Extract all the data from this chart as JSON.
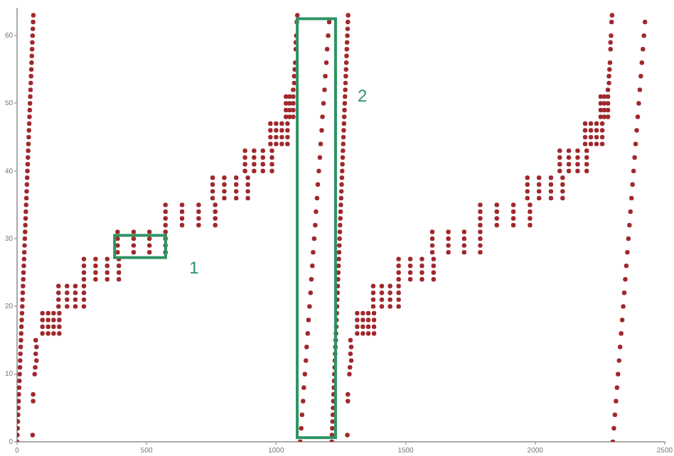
{
  "chart_data": {
    "type": "scatter",
    "xlim": [
      0,
      2500
    ],
    "xticks": [
      0,
      500,
      1000,
      1500,
      2000,
      2500
    ],
    "ylim": [
      0,
      64
    ],
    "yticks": [
      0,
      10,
      20,
      30,
      40,
      50,
      60
    ],
    "grid": false,
    "legend": false,
    "marker": "circle",
    "annotations": [
      "1",
      "2"
    ],
    "series": [
      {
        "color": "#a0282d",
        "x": [
          0,
          1,
          2,
          3,
          4,
          5,
          6,
          7,
          8,
          9,
          10,
          11,
          12,
          13,
          14,
          15,
          16,
          17,
          18,
          19,
          20,
          21,
          22,
          23,
          24,
          25,
          26,
          27,
          28,
          29,
          30,
          31,
          32,
          33,
          34,
          35,
          36,
          37,
          38,
          39,
          40,
          41,
          42,
          43,
          44,
          45,
          46,
          47,
          48,
          49,
          50,
          51,
          52,
          53,
          54,
          55,
          56,
          57,
          58,
          59,
          60,
          61,
          62,
          63
        ],
        "values": [
          0,
          1,
          2,
          3,
          4,
          5,
          6,
          7,
          8,
          9,
          10,
          11,
          12,
          13,
          14,
          15,
          16,
          17,
          18,
          19,
          20,
          21,
          22,
          23,
          24,
          25,
          26,
          27,
          28,
          29,
          30,
          31,
          32,
          33,
          34,
          35,
          36,
          37,
          38,
          39,
          40,
          41,
          42,
          43,
          44,
          45,
          46,
          47,
          48,
          49,
          50,
          51,
          52,
          53,
          54,
          55,
          56,
          57,
          58,
          59,
          60,
          61,
          62,
          63
        ]
      },
      {
        "color": "#a0282d",
        "x": [
          60,
          62,
          62,
          68,
          70,
          75,
          72,
          75,
          72,
          98,
          120,
          141,
          163,
          98,
          120,
          141,
          163,
          98,
          120,
          141,
          163,
          98,
          120,
          141,
          163,
          160,
          193,
          225,
          258,
          160,
          193,
          225,
          258,
          160,
          193,
          225,
          258,
          160,
          193,
          225,
          258,
          258,
          303,
          348,
          393,
          258,
          303,
          348,
          393,
          258,
          303,
          348,
          393,
          258,
          303,
          348,
          393,
          388,
          450,
          511,
          573,
          388,
          450,
          511,
          573,
          388,
          450,
          511,
          573,
          388,
          450,
          511,
          573,
          573,
          637,
          701,
          765,
          573,
          637,
          701,
          765,
          573,
          637,
          701,
          765,
          573,
          637,
          701,
          765,
          755,
          800,
          846,
          891,
          755,
          800,
          846,
          891,
          755,
          800,
          846,
          891,
          755,
          800,
          846,
          891,
          880,
          915,
          949,
          984,
          880,
          915,
          949,
          984,
          880,
          915,
          949,
          984,
          880,
          915,
          949,
          984,
          978,
          1000,
          1022,
          1044,
          978,
          1000,
          1022,
          1044,
          978,
          1000,
          1022,
          1044,
          978,
          1000,
          1022,
          1044,
          1038,
          1052,
          1066,
          1038,
          1052,
          1066,
          1038,
          1052,
          1066,
          1038,
          1052,
          1066,
          1066,
          1070,
          1070,
          1072,
          1074,
          1076,
          1076,
          1078,
          1080,
          1082
        ],
        "values": [
          1,
          6,
          7,
          10,
          11,
          12,
          13,
          14,
          15,
          16,
          16,
          16,
          16,
          17,
          17,
          17,
          17,
          18,
          18,
          18,
          18,
          19,
          19,
          19,
          19,
          20,
          20,
          20,
          20,
          21,
          21,
          21,
          21,
          22,
          22,
          22,
          22,
          23,
          23,
          23,
          23,
          24,
          24,
          24,
          24,
          25,
          25,
          25,
          25,
          26,
          26,
          26,
          26,
          27,
          27,
          27,
          27,
          28,
          28,
          28,
          28,
          29,
          29,
          29,
          29,
          30,
          30,
          30,
          30,
          31,
          31,
          31,
          31,
          32,
          32,
          32,
          32,
          33,
          33,
          33,
          33,
          34,
          34,
          34,
          34,
          35,
          35,
          35,
          35,
          36,
          36,
          36,
          36,
          37,
          37,
          37,
          37,
          38,
          38,
          38,
          38,
          39,
          39,
          39,
          39,
          40,
          40,
          40,
          40,
          41,
          41,
          41,
          41,
          42,
          42,
          42,
          42,
          43,
          43,
          43,
          43,
          44,
          44,
          44,
          44,
          45,
          45,
          45,
          45,
          46,
          46,
          46,
          46,
          47,
          47,
          47,
          47,
          48,
          48,
          48,
          49,
          49,
          49,
          50,
          50,
          50,
          51,
          51,
          51,
          52,
          53,
          54,
          55,
          56,
          58,
          59,
          60,
          62,
          63
        ]
      },
      {
        "color": "#a0282d",
        "x": [
          1093,
          1097,
          1100,
          1104,
          1107,
          1111,
          1115,
          1118,
          1122,
          1125,
          1129,
          1133,
          1136,
          1140,
          1143,
          1147,
          1151,
          1154,
          1158,
          1161,
          1165,
          1169,
          1172,
          1176,
          1179,
          1183,
          1187,
          1190,
          1194,
          1197,
          1201,
          1205
        ],
        "values": [
          0,
          2,
          4,
          6,
          8,
          10,
          12,
          14,
          16,
          18,
          20,
          22,
          24,
          26,
          28,
          30,
          32,
          34,
          36,
          38,
          40,
          42,
          44,
          46,
          48,
          50,
          52,
          54,
          56,
          58,
          60,
          62
        ]
      },
      {
        "color": "#a0282d",
        "x": [
          1215,
          1216,
          1217,
          1218,
          1219,
          1220,
          1221,
          1222,
          1223,
          1224,
          1225,
          1226,
          1227,
          1228,
          1229,
          1230,
          1231,
          1232,
          1233,
          1234,
          1235,
          1236,
          1237,
          1238,
          1239,
          1240,
          1241,
          1242,
          1243,
          1244,
          1245,
          1246,
          1247,
          1248,
          1249,
          1250,
          1251,
          1252,
          1253,
          1254,
          1255,
          1256,
          1257,
          1258,
          1259,
          1260,
          1261,
          1262,
          1263,
          1264,
          1265,
          1266,
          1267,
          1268,
          1269,
          1270,
          1271,
          1272,
          1273,
          1274,
          1275,
          1276,
          1277,
          1278
        ],
        "values": [
          0,
          1,
          2,
          3,
          4,
          5,
          6,
          7,
          8,
          9,
          10,
          11,
          12,
          13,
          14,
          15,
          16,
          17,
          18,
          19,
          20,
          21,
          22,
          23,
          24,
          25,
          26,
          27,
          28,
          29,
          30,
          31,
          32,
          33,
          34,
          35,
          36,
          37,
          38,
          39,
          40,
          41,
          42,
          43,
          44,
          45,
          46,
          47,
          48,
          49,
          50,
          51,
          52,
          53,
          54,
          55,
          56,
          57,
          58,
          59,
          60,
          61,
          62,
          63
        ]
      },
      {
        "color": "#a0282d",
        "x": [
          1275,
          1277,
          1277,
          1283,
          1285,
          1290,
          1287,
          1290,
          1287,
          1313,
          1335,
          1356,
          1378,
          1313,
          1335,
          1356,
          1378,
          1313,
          1335,
          1356,
          1378,
          1313,
          1335,
          1356,
          1378,
          1375,
          1408,
          1440,
          1473,
          1375,
          1408,
          1440,
          1473,
          1375,
          1408,
          1440,
          1473,
          1375,
          1408,
          1440,
          1473,
          1473,
          1518,
          1563,
          1608,
          1473,
          1518,
          1563,
          1608,
          1473,
          1518,
          1563,
          1608,
          1473,
          1518,
          1563,
          1608,
          1603,
          1665,
          1726,
          1788,
          1603,
          1665,
          1726,
          1788,
          1603,
          1665,
          1726,
          1788,
          1603,
          1665,
          1726,
          1788,
          1788,
          1852,
          1916,
          1980,
          1788,
          1852,
          1916,
          1980,
          1788,
          1852,
          1916,
          1980,
          1788,
          1852,
          1916,
          1980,
          1970,
          2015,
          2061,
          2106,
          1970,
          2015,
          2061,
          2106,
          1970,
          2015,
          2061,
          2106,
          1970,
          2015,
          2061,
          2106,
          2095,
          2130,
          2164,
          2199,
          2095,
          2130,
          2164,
          2199,
          2095,
          2130,
          2164,
          2199,
          2095,
          2130,
          2164,
          2199,
          2193,
          2215,
          2237,
          2259,
          2193,
          2215,
          2237,
          2259,
          2193,
          2215,
          2237,
          2259,
          2193,
          2215,
          2237,
          2259,
          2253,
          2267,
          2281,
          2253,
          2267,
          2281,
          2253,
          2267,
          2281,
          2253,
          2267,
          2281,
          2281,
          2285,
          2285,
          2287,
          2289,
          2291,
          2291,
          2293,
          2295,
          2297
        ],
        "values": [
          1,
          6,
          7,
          10,
          11,
          12,
          13,
          14,
          15,
          16,
          16,
          16,
          16,
          17,
          17,
          17,
          17,
          18,
          18,
          18,
          18,
          19,
          19,
          19,
          19,
          20,
          20,
          20,
          20,
          21,
          21,
          21,
          21,
          22,
          22,
          22,
          22,
          23,
          23,
          23,
          23,
          24,
          24,
          24,
          24,
          25,
          25,
          25,
          25,
          26,
          26,
          26,
          26,
          27,
          27,
          27,
          27,
          28,
          28,
          28,
          28,
          29,
          29,
          29,
          29,
          30,
          30,
          30,
          30,
          31,
          31,
          31,
          31,
          32,
          32,
          32,
          32,
          33,
          33,
          33,
          33,
          34,
          34,
          34,
          34,
          35,
          35,
          35,
          35,
          36,
          36,
          36,
          36,
          37,
          37,
          37,
          37,
          38,
          38,
          38,
          38,
          39,
          39,
          39,
          39,
          40,
          40,
          40,
          40,
          41,
          41,
          41,
          41,
          42,
          42,
          42,
          42,
          43,
          43,
          43,
          43,
          44,
          44,
          44,
          44,
          45,
          45,
          45,
          45,
          46,
          46,
          46,
          46,
          47,
          47,
          47,
          47,
          48,
          48,
          48,
          49,
          49,
          49,
          50,
          50,
          50,
          51,
          51,
          51,
          52,
          53,
          54,
          55,
          56,
          58,
          59,
          60,
          62,
          63
        ]
      },
      {
        "color": "#a0282d",
        "x": [
          2300,
          2304,
          2308,
          2312,
          2316,
          2320,
          2324,
          2328,
          2332,
          2336,
          2340,
          2344,
          2348,
          2352,
          2356,
          2360,
          2364,
          2368,
          2372,
          2376,
          2380,
          2384,
          2388,
          2392,
          2396,
          2400,
          2404,
          2408,
          2412,
          2416,
          2420,
          2424
        ],
        "values": [
          0,
          2,
          4,
          6,
          8,
          10,
          12,
          14,
          16,
          18,
          20,
          22,
          24,
          26,
          28,
          30,
          32,
          34,
          36,
          38,
          40,
          42,
          44,
          46,
          48,
          50,
          52,
          54,
          56,
          58,
          60,
          62
        ]
      }
    ]
  }
}
